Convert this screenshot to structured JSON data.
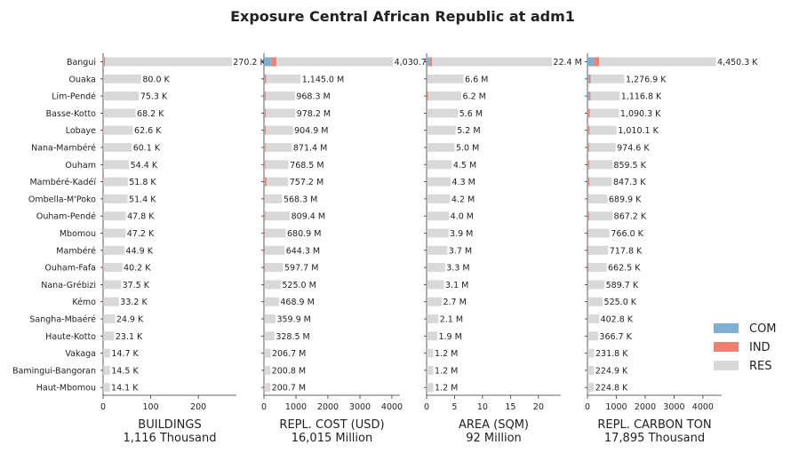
{
  "chart_data": {
    "type": "bar",
    "orientation": "horizontal",
    "stacked": true,
    "title": "Exposure Central African Republic at adm1",
    "categories": [
      "Bangui",
      "Ouaka",
      "Lim-Pendé",
      "Basse-Kotto",
      "Lobaye",
      "Nana-Mambéré",
      "Ouham",
      "Mambéré-Kadéï",
      "Ombella-M'Poko",
      "Ouham-Pendé",
      "Mbomou",
      "Mambéré",
      "Ouham-Fafa",
      "Nana-Grébizi",
      "Kémo",
      "Sangha-Mbaéré",
      "Haute-Kotto",
      "Vakaga",
      "Bamingui-Bangoran",
      "Haut-Mbomou"
    ],
    "legend": {
      "placement": "lower-right",
      "entries": [
        {
          "name": "COM",
          "color": "#7fb0d0"
        },
        {
          "name": "IND",
          "color": "#f28070"
        },
        {
          "name": "RES",
          "color": "#d9d9d9"
        }
      ]
    },
    "grid": false,
    "panels": [
      {
        "xlabel": "BUILDINGS",
        "subtitle": "1,116 Thousand",
        "xlim": [
          0,
          280
        ],
        "xticks": [
          0,
          100,
          200
        ],
        "totals": [
          270.2,
          80.0,
          75.3,
          68.2,
          62.6,
          60.1,
          54.4,
          51.8,
          51.4,
          47.8,
          47.2,
          44.9,
          40.2,
          37.5,
          33.2,
          24.9,
          23.1,
          14.7,
          14.5,
          14.1
        ],
        "labels": [
          "270.2 K",
          "80.0 K",
          "75.3 K",
          "68.2 K",
          "62.6 K",
          "60.1 K",
          "54.4 K",
          "51.8 K",
          "51.4 K",
          "47.8 K",
          "47.2 K",
          "44.9 K",
          "40.2 K",
          "37.5 K",
          "33.2 K",
          "24.9 K",
          "23.1 K",
          "14.7 K",
          "14.5 K",
          "14.1 K"
        ],
        "com": [
          1.5,
          0.3,
          0.3,
          0.3,
          0.3,
          0.3,
          0.3,
          0.3,
          0.3,
          0.3,
          0.3,
          0.3,
          0.3,
          0.3,
          0.3,
          0.2,
          0.2,
          0.1,
          0.1,
          0.1
        ],
        "ind": [
          2.5,
          0.5,
          0.5,
          0.5,
          0.4,
          0.4,
          0.4,
          0.4,
          0.3,
          0.3,
          0.3,
          0.3,
          0.3,
          0.3,
          0.2,
          0.2,
          0.2,
          0.1,
          0.1,
          0.1
        ]
      },
      {
        "xlabel": "REPL. COST (USD)",
        "subtitle": "16,015 Million",
        "xlim": [
          0,
          4250
        ],
        "xticks": [
          0,
          1000,
          2000,
          3000,
          4000
        ],
        "totals": [
          4030.7,
          1145.0,
          968.3,
          978.2,
          904.9,
          871.4,
          768.5,
          757.2,
          568.3,
          809.4,
          680.9,
          644.3,
          597.7,
          525.0,
          468.9,
          359.9,
          328.5,
          206.7,
          200.8,
          200.7
        ],
        "labels": [
          "4,030.7",
          "1,145.0 M",
          "968.3 M",
          "978.2 M",
          "904.9 M",
          "871.4 M",
          "768.5 M",
          "757.2 M",
          "568.3 M",
          "809.4 M",
          "680.9 M",
          "644.3 M",
          "597.7 M",
          "525.0 M",
          "468.9 M",
          "359.9 M",
          "328.5 M",
          "206.7 M",
          "200.8 M",
          "200.7 M"
        ],
        "com": [
          240,
          30,
          25,
          25,
          25,
          20,
          20,
          20,
          10,
          20,
          15,
          15,
          15,
          10,
          10,
          8,
          8,
          5,
          5,
          5
        ],
        "ind": [
          150,
          40,
          30,
          35,
          30,
          30,
          25,
          60,
          10,
          25,
          20,
          20,
          20,
          10,
          10,
          8,
          8,
          5,
          5,
          5
        ]
      },
      {
        "xlabel": "AREA (SQM)",
        "subtitle": "92 Million",
        "xlim": [
          0,
          24
        ],
        "xticks": [
          0,
          5,
          10,
          15,
          20
        ],
        "totals": [
          22.4,
          6.6,
          6.2,
          5.6,
          5.2,
          5.0,
          4.5,
          4.3,
          4.2,
          4.0,
          3.9,
          3.7,
          3.3,
          3.1,
          2.7,
          2.1,
          1.9,
          1.2,
          1.2,
          1.2
        ],
        "labels": [
          "22.4 M",
          "6.6 M",
          "6.2 M",
          "5.6 M",
          "5.2 M",
          "5.0 M",
          "4.5 M",
          "4.3 M",
          "4.2 M",
          "4.0 M",
          "3.9 M",
          "3.7 M",
          "3.3 M",
          "3.1 M",
          "2.7 M",
          "2.1 M",
          "1.9 M",
          "1.2 M",
          "1.2 M",
          "1.2 M"
        ],
        "com": [
          0.6,
          0.1,
          0.05,
          0.05,
          0.05,
          0.05,
          0.05,
          0.05,
          0.05,
          0.05,
          0.05,
          0.05,
          0.05,
          0.05,
          0.05,
          0.03,
          0.03,
          0.02,
          0.02,
          0.02
        ],
        "ind": [
          0.4,
          0.1,
          0.2,
          0.05,
          0.05,
          0.05,
          0.05,
          0.05,
          0.05,
          0.05,
          0.05,
          0.05,
          0.05,
          0.05,
          0.05,
          0.03,
          0.03,
          0.02,
          0.02,
          0.02
        ]
      },
      {
        "xlabel": "REPL. CARBON TON",
        "subtitle": "17,895 Thousand",
        "xlim": [
          0,
          4650
        ],
        "xticks": [
          0,
          1000,
          2000,
          3000,
          4000
        ],
        "totals": [
          4450.3,
          1276.9,
          1116.8,
          1090.3,
          1010.1,
          974.6,
          859.5,
          847.3,
          689.9,
          867.2,
          766.0,
          717.8,
          662.5,
          589.7,
          525.0,
          402.8,
          366.7,
          231.8,
          224.9,
          224.8
        ],
        "labels": [
          "4,450.3 K",
          "1,276.9 K",
          "1,116.8 K",
          "1,090.3 K",
          "1,010.1 K",
          "974.6 K",
          "859.5 K",
          "847.3 K",
          "689.9 K",
          "867.2 K",
          "766.0 K",
          "717.8 K",
          "662.5 K",
          "589.7 K",
          "525.0 K",
          "402.8 K",
          "366.7 K",
          "231.8 K",
          "224.9 K",
          "224.8 K"
        ],
        "com": [
          230,
          60,
          70,
          20,
          25,
          20,
          20,
          20,
          10,
          20,
          15,
          15,
          15,
          10,
          10,
          8,
          8,
          5,
          5,
          5
        ],
        "ind": [
          180,
          50,
          40,
          60,
          50,
          40,
          40,
          50,
          15,
          40,
          25,
          25,
          25,
          15,
          10,
          10,
          10,
          5,
          5,
          5
        ]
      }
    ]
  }
}
